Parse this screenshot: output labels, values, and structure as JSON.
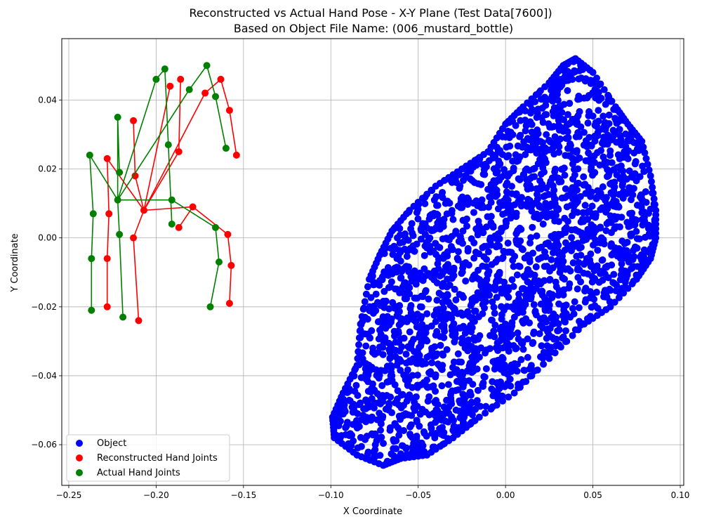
{
  "chart_data": {
    "type": "scatter",
    "title_line1": "Reconstructed vs Actual Hand Pose - X-Y Plane (Test Data[7600])",
    "title_line2": "Based on Object File Name: (006_mustard_bottle)",
    "xlabel": "X Coordinate",
    "ylabel": "Y Coordinate",
    "xlim": [
      -0.254,
      0.102
    ],
    "ylim": [
      -0.0718,
      0.0578
    ],
    "xticks": [
      -0.25,
      -0.2,
      -0.15,
      -0.1,
      -0.05,
      0.0,
      0.05,
      0.1
    ],
    "xtick_labels": [
      "−0.25",
      "−0.20",
      "−0.15",
      "−0.10",
      "−0.05",
      "0.00",
      "0.05",
      "0.10"
    ],
    "yticks": [
      -0.06,
      -0.04,
      -0.02,
      0.0,
      0.02,
      0.04
    ],
    "ytick_labels": [
      "−0.06",
      "−0.04",
      "−0.02",
      "0.00",
      "0.02",
      "0.04"
    ],
    "grid": true,
    "legend_position": "lower-left",
    "series": [
      {
        "name": "Object",
        "color": "#0000ff",
        "kind": "point-cloud",
        "outline": [
          [
            0.04,
            0.052
          ],
          [
            0.05,
            0.048
          ],
          [
            0.063,
            0.038
          ],
          [
            0.07,
            0.033
          ],
          [
            0.078,
            0.028
          ],
          [
            0.083,
            0.018
          ],
          [
            0.086,
            0.008
          ],
          [
            0.086,
            0.0
          ],
          [
            0.083,
            -0.006
          ],
          [
            0.075,
            -0.012
          ],
          [
            0.06,
            -0.02
          ],
          [
            0.045,
            -0.025
          ],
          [
            0.025,
            -0.035
          ],
          [
            0.005,
            -0.045
          ],
          [
            -0.015,
            -0.052
          ],
          [
            -0.03,
            -0.058
          ],
          [
            -0.045,
            -0.063
          ],
          [
            -0.06,
            -0.064
          ],
          [
            -0.07,
            -0.066
          ],
          [
            -0.085,
            -0.063
          ],
          [
            -0.098,
            -0.058
          ],
          [
            -0.099,
            -0.052
          ],
          [
            -0.093,
            -0.045
          ],
          [
            -0.085,
            -0.037
          ],
          [
            -0.083,
            -0.025
          ],
          [
            -0.078,
            -0.012
          ],
          [
            -0.072,
            -0.005
          ],
          [
            -0.065,
            0.002
          ],
          [
            -0.055,
            0.008
          ],
          [
            -0.04,
            0.015
          ],
          [
            -0.025,
            0.02
          ],
          [
            -0.01,
            0.025
          ],
          [
            0.0,
            0.033
          ],
          [
            0.01,
            0.038
          ],
          [
            0.025,
            0.045
          ],
          [
            0.033,
            0.05
          ]
        ],
        "point_count": 2300
      },
      {
        "name": "Reconstructed Hand Joints",
        "color": "#ff0000",
        "joints": [
          [
            -0.207,
            0.008
          ],
          [
            -0.212,
            0.018
          ],
          [
            -0.213,
            0.034
          ],
          [
            -0.187,
            0.025
          ],
          [
            -0.186,
            0.046
          ],
          [
            -0.192,
            0.044
          ],
          [
            -0.172,
            0.042
          ],
          [
            -0.163,
            0.046
          ],
          [
            -0.158,
            0.037
          ],
          [
            -0.154,
            0.024
          ],
          [
            -0.179,
            0.009
          ],
          [
            -0.187,
            0.003
          ],
          [
            -0.213,
            0.0
          ],
          [
            -0.21,
            -0.024
          ],
          [
            -0.159,
            0.001
          ],
          [
            -0.157,
            -0.008
          ],
          [
            -0.158,
            -0.019
          ],
          [
            -0.228,
            0.023
          ],
          [
            -0.227,
            0.007
          ],
          [
            -0.228,
            -0.006
          ],
          [
            -0.228,
            -0.02
          ]
        ],
        "connections": [
          [
            0,
            1
          ],
          [
            1,
            2
          ],
          [
            0,
            3
          ],
          [
            3,
            4
          ],
          [
            0,
            5
          ],
          [
            0,
            6
          ],
          [
            6,
            7
          ],
          [
            7,
            8
          ],
          [
            8,
            9
          ],
          [
            0,
            10
          ],
          [
            10,
            11
          ],
          [
            0,
            12
          ],
          [
            12,
            13
          ],
          [
            10,
            14
          ],
          [
            14,
            15
          ],
          [
            15,
            16
          ],
          [
            0,
            17
          ],
          [
            17,
            18
          ],
          [
            18,
            19
          ],
          [
            19,
            20
          ]
        ]
      },
      {
        "name": "Actual Hand Joints",
        "color": "#008000",
        "joints": [
          [
            -0.222,
            0.011
          ],
          [
            -0.222,
            0.035
          ],
          [
            -0.221,
            0.019
          ],
          [
            -0.2,
            0.046
          ],
          [
            -0.195,
            0.049
          ],
          [
            -0.193,
            0.027
          ],
          [
            -0.191,
            0.004
          ],
          [
            -0.181,
            0.043
          ],
          [
            -0.171,
            0.05
          ],
          [
            -0.166,
            0.041
          ],
          [
            -0.16,
            0.026
          ],
          [
            -0.191,
            0.011
          ],
          [
            -0.166,
            0.003
          ],
          [
            -0.164,
            -0.007
          ],
          [
            -0.169,
            -0.02
          ],
          [
            -0.221,
            0.001
          ],
          [
            -0.219,
            -0.023
          ],
          [
            -0.238,
            0.024
          ],
          [
            -0.236,
            0.007
          ],
          [
            -0.237,
            -0.006
          ],
          [
            -0.237,
            -0.021
          ]
        ],
        "connections": [
          [
            0,
            1
          ],
          [
            1,
            2
          ],
          [
            0,
            3
          ],
          [
            3,
            4
          ],
          [
            4,
            5
          ],
          [
            5,
            6
          ],
          [
            0,
            7
          ],
          [
            7,
            8
          ],
          [
            8,
            9
          ],
          [
            9,
            10
          ],
          [
            0,
            11
          ],
          [
            11,
            12
          ],
          [
            12,
            13
          ],
          [
            13,
            14
          ],
          [
            0,
            15
          ],
          [
            15,
            16
          ],
          [
            0,
            17
          ],
          [
            17,
            18
          ],
          [
            18,
            19
          ],
          [
            19,
            20
          ]
        ]
      }
    ]
  }
}
